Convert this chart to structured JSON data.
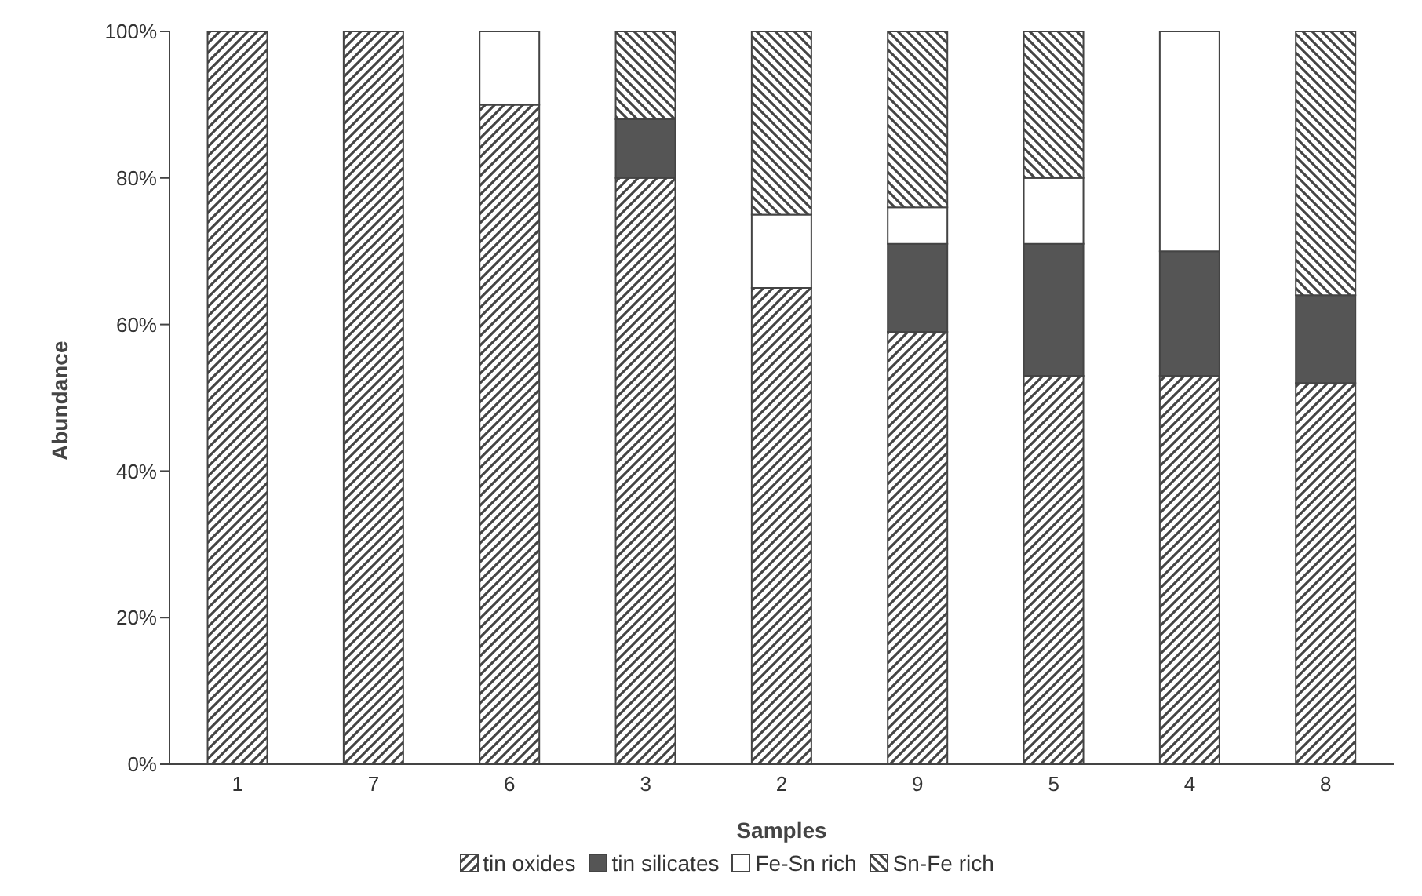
{
  "chart_data": {
    "type": "bar",
    "stacked": true,
    "xlabel": "Samples",
    "ylabel": "Abundance",
    "categories": [
      "1",
      "7",
      "6",
      "3",
      "2",
      "9",
      "5",
      "4",
      "8"
    ],
    "series": [
      {
        "name": "tin oxides",
        "color": "#444444",
        "values": [
          100,
          100,
          90,
          80,
          65,
          59,
          53,
          53,
          52
        ]
      },
      {
        "name": "tin silicates",
        "color": "#555555",
        "values": [
          0,
          0,
          0,
          8,
          0,
          12,
          18,
          17,
          12
        ]
      },
      {
        "name": "Fe-Sn rich",
        "color": "#ffffff",
        "values": [
          0,
          0,
          10,
          0,
          10,
          5,
          9,
          30,
          0
        ]
      },
      {
        "name": "Sn-Fe rich",
        "color": "#444444",
        "values": [
          0,
          0,
          0,
          12,
          25,
          24,
          20,
          0,
          36
        ]
      }
    ],
    "ylim": [
      0,
      100
    ],
    "yticks": [
      {
        "value": 0,
        "label": "0%"
      },
      {
        "value": 20,
        "label": "20%"
      },
      {
        "value": 40,
        "label": "40%"
      },
      {
        "value": 60,
        "label": "60%"
      },
      {
        "value": 80,
        "label": "80%"
      },
      {
        "value": 100,
        "label": "100%"
      }
    ],
    "grid": false,
    "legend": "bottom"
  }
}
